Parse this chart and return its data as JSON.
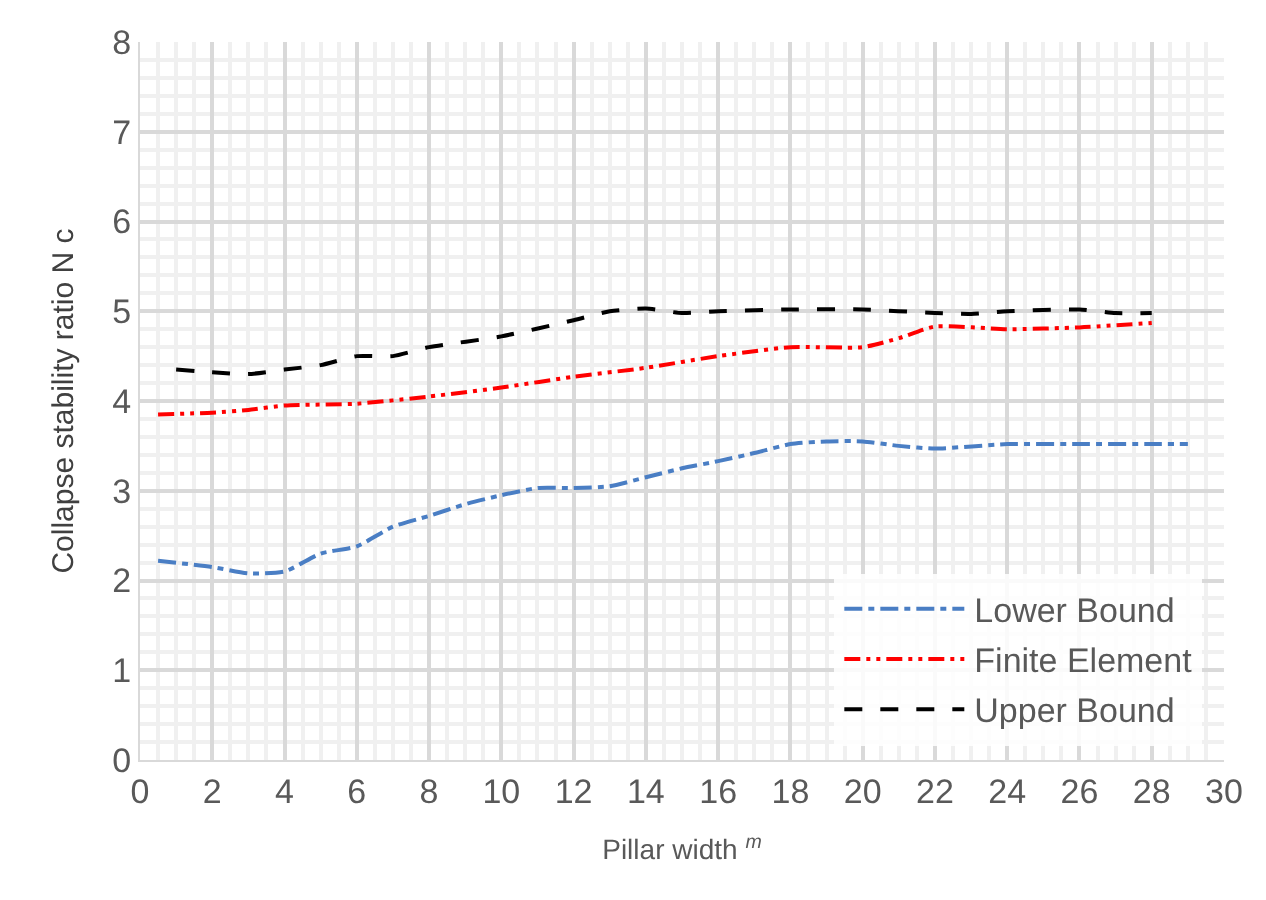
{
  "chart_data": {
    "type": "line",
    "xlabel": "Pillar width $^{m}$",
    "ylabel": "Collapse stability ratio N c",
    "xlim": [
      0,
      30
    ],
    "xticks": [
      0,
      2,
      4,
      6,
      8,
      10,
      12,
      14,
      16,
      18,
      20,
      22,
      24,
      26,
      28,
      30
    ],
    "ylim": [
      0,
      8
    ],
    "yticks": [
      0,
      1,
      2,
      3,
      4,
      5,
      6,
      7,
      8
    ],
    "grid": true,
    "legend": "bottom right",
    "marker": "none",
    "series": [
      {
        "name": "Lower Bound",
        "color": "#4a7ec4",
        "line_style": "dashdot",
        "x": [
          0.5,
          2,
          3,
          4,
          5,
          6,
          7,
          8,
          9,
          10,
          11,
          12,
          13,
          14,
          15,
          16,
          17,
          18,
          19,
          20,
          21,
          22,
          24,
          26,
          28,
          29
        ],
        "values": [
          2.22,
          2.15,
          2.08,
          2.1,
          2.3,
          2.38,
          2.6,
          2.72,
          2.85,
          2.95,
          3.03,
          3.03,
          3.05,
          3.15,
          3.25,
          3.33,
          3.42,
          3.52,
          3.55,
          3.55,
          3.5,
          3.47,
          3.52,
          3.52,
          3.52,
          3.52
        ]
      },
      {
        "name": "Finite Element",
        "color": "#ff0000",
        "line_style": "dashdotdot",
        "x": [
          0.5,
          2,
          3,
          4,
          6,
          8,
          10,
          12,
          14,
          16,
          18,
          20,
          21,
          22,
          24,
          26,
          28
        ],
        "values": [
          3.85,
          3.87,
          3.9,
          3.95,
          3.97,
          4.05,
          4.15,
          4.27,
          4.37,
          4.5,
          4.6,
          4.6,
          4.7,
          4.83,
          4.8,
          4.82,
          4.87
        ]
      },
      {
        "name": "Upper Bound",
        "color": "#000000",
        "line_style": "dashed",
        "x": [
          1,
          2,
          3,
          4,
          5,
          6,
          7,
          8,
          10,
          12,
          13,
          14,
          15,
          16,
          18,
          20,
          22,
          23,
          24,
          26,
          27,
          28
        ],
        "values": [
          4.35,
          4.32,
          4.3,
          4.35,
          4.4,
          4.5,
          4.5,
          4.6,
          4.72,
          4.9,
          5.0,
          5.03,
          4.98,
          5.0,
          5.02,
          5.02,
          4.98,
          4.97,
          5.0,
          5.02,
          4.98,
          4.98
        ]
      }
    ]
  }
}
